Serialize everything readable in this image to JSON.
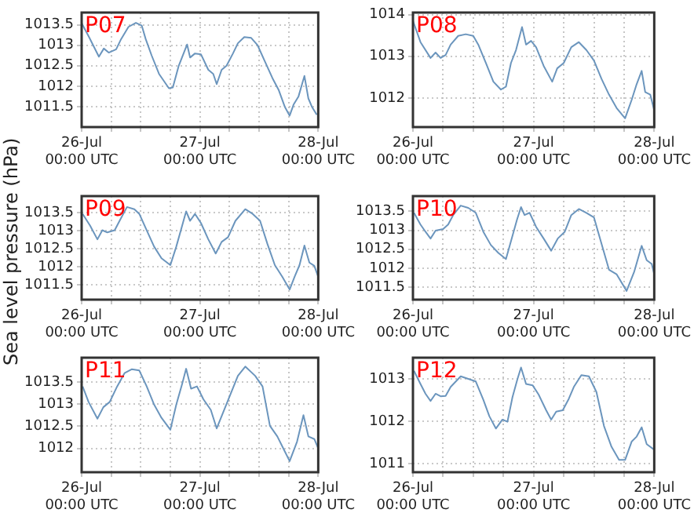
{
  "chart_data": [
    {
      "type": "line",
      "title": "P07",
      "xlim": [
        "--07-26T00:00",
        "--07-28T00:00"
      ],
      "xticks": [
        {
          "value": "--07-26T00:00",
          "label": "26-Jul\n00:00 UTC"
        },
        {
          "value": "--07-26T06:00",
          "label": null
        },
        {
          "value": "--07-26T12:00",
          "label": null
        },
        {
          "value": "--07-26T18:00",
          "label": null
        },
        {
          "value": "--07-27T00:00",
          "label": "27-Jul\n00:00 UTC"
        },
        {
          "value": "--07-27T06:00",
          "label": null
        },
        {
          "value": "--07-27T12:00",
          "label": null
        },
        {
          "value": "--07-27T18:00",
          "label": null
        },
        {
          "value": "--07-28T00:00",
          "label": "28-Jul\n00:00 UTC"
        }
      ],
      "ylim": [
        1011.0,
        1013.8
      ],
      "yticks": [
        1011.5,
        1012,
        1012.5,
        1013,
        1013.5
      ],
      "grid": true,
      "marker": "none",
      "line_style": "solid",
      "series": [
        {
          "color": "#6b95bd",
          "x": [
            "--07-26T00:00",
            "--07-26T01:30",
            "--07-26T03:30",
            "--07-26T04:30",
            "--07-26T05:30",
            "--07-26T07:00",
            "--07-26T08:00",
            "--07-26T09:30",
            "--07-26T11:00",
            "--07-26T12:12",
            "--07-26T13:00",
            "--07-26T14:12",
            "--07-26T15:42",
            "--07-26T17:42",
            "--07-26T18:30",
            "--07-26T19:42",
            "--07-26T21:24",
            "--07-26T22:00",
            "--07-26T23:00",
            "--07-27T00:12",
            "--07-27T01:42",
            "--07-27T02:42",
            "--07-27T03:24",
            "--07-27T04:24",
            "--07-27T05:24",
            "--07-27T06:42",
            "--07-27T07:42",
            "--07-27T09:00",
            "--07-27T10:24",
            "--07-27T11:42",
            "--07-27T13:12",
            "--07-27T14:42",
            "--07-27T16:00",
            "--07-27T17:12",
            "--07-27T18:12",
            "--07-27T19:00",
            "--07-27T20:00",
            "--07-27T21:12",
            "--07-27T22:00",
            "--07-27T22:42",
            "--07-27T23:42"
          ],
          "values": [
            1013.54,
            1013.2,
            1012.72,
            1012.92,
            1012.82,
            1012.9,
            1013.15,
            1013.45,
            1013.55,
            1013.48,
            1013.15,
            1012.75,
            1012.3,
            1011.95,
            1011.97,
            1012.5,
            1013.02,
            1012.7,
            1012.8,
            1012.78,
            1012.4,
            1012.3,
            1012.05,
            1012.4,
            1012.5,
            1012.8,
            1013.05,
            1013.2,
            1013.18,
            1013.0,
            1012.6,
            1012.2,
            1011.9,
            1011.5,
            1011.28,
            1011.55,
            1011.75,
            1012.25,
            1011.7,
            1011.5,
            1011.3
          ]
        }
      ]
    },
    {
      "type": "line",
      "title": "P08",
      "xlim": [
        "--07-26T00:00",
        "--07-28T00:00"
      ],
      "xticks": [
        {
          "value": "--07-26T00:00",
          "label": "26-Jul\n00:00 UTC"
        },
        {
          "value": "--07-26T06:00",
          "label": null
        },
        {
          "value": "--07-26T12:00",
          "label": null
        },
        {
          "value": "--07-26T18:00",
          "label": null
        },
        {
          "value": "--07-27T00:00",
          "label": "27-Jul\n00:00 UTC"
        },
        {
          "value": "--07-27T06:00",
          "label": null
        },
        {
          "value": "--07-27T12:00",
          "label": null
        },
        {
          "value": "--07-27T18:00",
          "label": null
        },
        {
          "value": "--07-28T00:00",
          "label": "28-Jul\n00:00 UTC"
        }
      ],
      "ylim": [
        1011.3,
        1014.05
      ],
      "yticks": [
        1012,
        1013,
        1014
      ],
      "grid": true,
      "marker": "none",
      "line_style": "solid",
      "series": [
        {
          "color": "#6b95bd",
          "x": [
            "--07-26T00:00",
            "--07-26T01:30",
            "--07-26T03:30",
            "--07-26T04:30",
            "--07-26T05:30",
            "--07-26T06:30",
            "--07-26T07:30",
            "--07-26T09:00",
            "--07-26T10:30",
            "--07-26T12:00",
            "--07-26T13:00",
            "--07-26T14:30",
            "--07-26T16:00",
            "--07-26T17:30",
            "--07-26T18:30",
            "--07-26T19:30",
            "--07-26T20:30",
            "--07-26T21:42",
            "--07-26T22:30",
            "--07-26T23:30",
            "--07-27T00:30",
            "--07-27T02:00",
            "--07-27T03:42",
            "--07-27T04:42",
            "--07-27T06:00",
            "--07-27T07:30",
            "--07-27T09:00",
            "--07-27T10:30",
            "--07-27T12:00",
            "--07-27T13:30",
            "--07-27T15:00",
            "--07-27T16:30",
            "--07-27T18:12",
            "--07-27T19:30",
            "--07-27T20:30",
            "--07-27T21:30",
            "--07-27T22:12",
            "--07-27T23:12",
            "--07-28T00:00"
          ],
          "values": [
            1013.85,
            1013.34,
            1012.96,
            1013.09,
            1012.96,
            1013.03,
            1013.28,
            1013.49,
            1013.53,
            1013.49,
            1013.28,
            1012.84,
            1012.39,
            1012.2,
            1012.27,
            1012.84,
            1013.15,
            1013.7,
            1013.28,
            1013.37,
            1013.22,
            1012.77,
            1012.39,
            1012.71,
            1012.84,
            1013.22,
            1013.34,
            1013.15,
            1012.9,
            1012.46,
            1012.08,
            1011.76,
            1011.51,
            1011.95,
            1012.33,
            1012.65,
            1012.14,
            1012.08,
            1011.7
          ]
        }
      ]
    },
    {
      "type": "line",
      "title": "P09",
      "ylabel": "Sea level pressure (hPa)",
      "xlim": [
        "--07-26T00:00",
        "--07-28T00:00"
      ],
      "xticks": [
        {
          "value": "--07-26T00:00",
          "label": "26-Jul\n00:00 UTC"
        },
        {
          "value": "--07-26T06:00",
          "label": null
        },
        {
          "value": "--07-26T12:00",
          "label": null
        },
        {
          "value": "--07-26T18:00",
          "label": null
        },
        {
          "value": "--07-27T00:00",
          "label": "27-Jul\n00:00 UTC"
        },
        {
          "value": "--07-27T06:00",
          "label": null
        },
        {
          "value": "--07-27T12:00",
          "label": null
        },
        {
          "value": "--07-27T18:00",
          "label": null
        },
        {
          "value": "--07-28T00:00",
          "label": "28-Jul\n00:00 UTC"
        }
      ],
      "ylim": [
        1011.1,
        1013.95
      ],
      "yticks": [
        1011.5,
        1012,
        1012.5,
        1013,
        1013.5
      ],
      "grid": true,
      "marker": "none",
      "line_style": "solid",
      "series": [
        {
          "color": "#6b95bd",
          "x": [
            "--07-26T00:12",
            "--07-26T01:42",
            "--07-26T03:12",
            "--07-26T04:12",
            "--07-26T05:12",
            "--07-26T06:42",
            "--07-26T07:42",
            "--07-26T09:12",
            "--07-26T10:42",
            "--07-26T11:42",
            "--07-26T13:12",
            "--07-26T14:42",
            "--07-26T16:12",
            "--07-26T18:00",
            "--07-26T19:12",
            "--07-26T20:24",
            "--07-26T21:12",
            "--07-26T22:00",
            "--07-26T23:00",
            "--07-27T00:12",
            "--07-27T01:42",
            "--07-27T03:12",
            "--07-27T04:24",
            "--07-27T05:42",
            "--07-27T07:12",
            "--07-27T09:12",
            "--07-27T10:42",
            "--07-27T12:12",
            "--07-27T13:42",
            "--07-27T15:12",
            "--07-27T16:42",
            "--07-27T18:12",
            "--07-27T19:12",
            "--07-27T20:12",
            "--07-27T21:12",
            "--07-27T22:12",
            "--07-27T23:12",
            "--07-28T00:00"
          ],
          "values": [
            1013.46,
            1013.14,
            1012.76,
            1013.01,
            1012.95,
            1013.01,
            1013.27,
            1013.65,
            1013.59,
            1013.46,
            1013.01,
            1012.56,
            1012.24,
            1012.05,
            1012.56,
            1013.14,
            1013.53,
            1013.27,
            1013.46,
            1013.21,
            1012.76,
            1012.37,
            1012.69,
            1012.82,
            1013.27,
            1013.59,
            1013.46,
            1013.27,
            1012.63,
            1012.05,
            1011.73,
            1011.38,
            1011.73,
            1012.05,
            1012.59,
            1012.12,
            1012.03,
            1011.73
          ]
        }
      ]
    },
    {
      "type": "line",
      "title": "P10",
      "xlim": [
        "--07-26T00:00",
        "--07-28T00:00"
      ],
      "xticks": [
        {
          "value": "--07-26T00:00",
          "label": "26-Jul\n00:00 UTC"
        },
        {
          "value": "--07-26T06:00",
          "label": null
        },
        {
          "value": "--07-26T12:00",
          "label": null
        },
        {
          "value": "--07-26T18:00",
          "label": null
        },
        {
          "value": "--07-27T00:00",
          "label": "27-Jul\n00:00 UTC"
        },
        {
          "value": "--07-27T06:00",
          "label": null
        },
        {
          "value": "--07-27T12:00",
          "label": null
        },
        {
          "value": "--07-27T18:00",
          "label": null
        },
        {
          "value": "--07-28T00:00",
          "label": "28-Jul\n00:00 UTC"
        }
      ],
      "ylim": [
        1011.17,
        1013.9
      ],
      "yticks": [
        1011.5,
        1012,
        1012.5,
        1013,
        1013.5
      ],
      "grid": true,
      "marker": "none",
      "line_style": "solid",
      "series": [
        {
          "color": "#6b95bd",
          "x": [
            "--07-26T00:12",
            "--07-26T01:30",
            "--07-26T02:30",
            "--07-26T03:30",
            "--07-26T04:30",
            "--07-26T06:00",
            "--07-26T07:00",
            "--07-26T08:00",
            "--07-26T09:30",
            "--07-26T11:00",
            "--07-26T12:30",
            "--07-26T14:00",
            "--07-26T15:30",
            "--07-26T17:00",
            "--07-26T18:30",
            "--07-26T19:30",
            "--07-26T20:42",
            "--07-26T21:30",
            "--07-26T22:12",
            "--07-26T23:12",
            "--07-27T00:30",
            "--07-27T02:00",
            "--07-27T03:30",
            "--07-27T04:48",
            "--07-27T06:12",
            "--07-27T07:30",
            "--07-27T09:00",
            "--07-27T10:30",
            "--07-27T12:00",
            "--07-27T13:30",
            "--07-27T15:00",
            "--07-27T16:30",
            "--07-27T18:30",
            "--07-27T20:00",
            "--07-27T21:30",
            "--07-27T22:30",
            "--07-27T23:30",
            "--07-28T00:00"
          ],
          "values": [
            1013.46,
            1013.15,
            1012.96,
            1012.78,
            1012.99,
            1013.03,
            1013.15,
            1013.4,
            1013.65,
            1013.59,
            1013.46,
            1012.96,
            1012.61,
            1012.4,
            1012.24,
            1012.71,
            1013.28,
            1013.61,
            1013.4,
            1013.46,
            1013.09,
            1012.78,
            1012.46,
            1012.78,
            1012.96,
            1013.4,
            1013.56,
            1013.46,
            1013.34,
            1012.65,
            1011.96,
            1011.84,
            1011.4,
            1011.9,
            1012.59,
            1012.21,
            1012.11,
            1011.84
          ]
        }
      ]
    },
    {
      "type": "line",
      "title": "P11",
      "xlim": [
        "--07-26T00:00",
        "--07-28T00:00"
      ],
      "xticks": [
        {
          "value": "--07-26T00:00",
          "label": "26-Jul\n00:00 UTC"
        },
        {
          "value": "--07-26T06:00",
          "label": null
        },
        {
          "value": "--07-26T12:00",
          "label": null
        },
        {
          "value": "--07-26T18:00",
          "label": null
        },
        {
          "value": "--07-27T00:00",
          "label": "27-Jul\n00:00 UTC"
        },
        {
          "value": "--07-27T06:00",
          "label": null
        },
        {
          "value": "--07-27T12:00",
          "label": null
        },
        {
          "value": "--07-27T18:00",
          "label": null
        },
        {
          "value": "--07-28T00:00",
          "label": "28-Jul\n00:00 UTC"
        }
      ],
      "ylim": [
        1011.46,
        1014.05
      ],
      "yticks": [
        1012,
        1012.5,
        1013,
        1013.5
      ],
      "grid": true,
      "marker": "none",
      "line_style": "solid",
      "series": [
        {
          "color": "#6b95bd",
          "x": [
            "--07-26T00:12",
            "--07-26T01:24",
            "--07-26T03:12",
            "--07-26T04:24",
            "--07-26T05:42",
            "--07-26T07:12",
            "--07-26T08:42",
            "--07-26T10:12",
            "--07-26T11:42",
            "--07-26T13:12",
            "--07-26T14:42",
            "--07-26T16:12",
            "--07-26T18:00",
            "--07-26T19:12",
            "--07-26T20:24",
            "--07-26T21:12",
            "--07-26T22:12",
            "--07-26T23:24",
            "--07-27T00:42",
            "--07-27T02:12",
            "--07-27T03:24",
            "--07-27T04:42",
            "--07-27T06:00",
            "--07-27T07:42",
            "--07-27T09:12",
            "--07-27T11:12",
            "--07-27T12:42",
            "--07-27T14:12",
            "--07-27T15:42",
            "--07-27T17:00",
            "--07-27T18:12",
            "--07-27T19:42",
            "--07-27T21:00",
            "--07-27T22:00",
            "--07-27T23:12",
            "--07-28T00:00"
          ],
          "values": [
            1013.4,
            1013.05,
            1012.67,
            1012.93,
            1013.05,
            1013.4,
            1013.7,
            1013.79,
            1013.76,
            1013.4,
            1012.99,
            1012.69,
            1012.42,
            1012.99,
            1013.46,
            1013.8,
            1013.35,
            1013.4,
            1013.11,
            1012.87,
            1012.45,
            1012.81,
            1013.17,
            1013.64,
            1013.85,
            1013.64,
            1013.4,
            1012.51,
            1012.27,
            1011.98,
            1011.71,
            1012.15,
            1012.75,
            1012.27,
            1012.21,
            1012.0
          ]
        }
      ]
    },
    {
      "type": "line",
      "title": "P12",
      "xlim": [
        "--07-26T00:00",
        "--07-28T00:00"
      ],
      "xticks": [
        {
          "value": "--07-26T00:00",
          "label": "26-Jul\n00:00 UTC"
        },
        {
          "value": "--07-26T06:00",
          "label": null
        },
        {
          "value": "--07-26T12:00",
          "label": null
        },
        {
          "value": "--07-26T18:00",
          "label": null
        },
        {
          "value": "--07-27T00:00",
          "label": "27-Jul\n00:00 UTC"
        },
        {
          "value": "--07-27T06:00",
          "label": null
        },
        {
          "value": "--07-27T12:00",
          "label": null
        },
        {
          "value": "--07-27T18:00",
          "label": null
        },
        {
          "value": "--07-28T00:00",
          "label": "28-Jul\n00:00 UTC"
        }
      ],
      "ylim": [
        1010.8,
        1013.5
      ],
      "yticks": [
        1011,
        1012,
        1013
      ],
      "grid": true,
      "marker": "none",
      "line_style": "solid",
      "series": [
        {
          "color": "#6b95bd",
          "x": [
            "--07-26T00:12",
            "--07-26T01:30",
            "--07-26T02:30",
            "--07-26T03:30",
            "--07-26T04:30",
            "--07-26T05:30",
            "--07-26T06:30",
            "--07-26T07:30",
            "--07-26T09:30",
            "--07-26T11:00",
            "--07-26T12:30",
            "--07-26T14:00",
            "--07-26T15:12",
            "--07-26T16:30",
            "--07-26T17:48",
            "--07-26T18:48",
            "--07-26T19:48",
            "--07-26T20:48",
            "--07-26T21:30",
            "--07-26T22:30",
            "--07-26T23:48",
            "--07-27T01:00",
            "--07-27T02:30",
            "--07-27T03:30",
            "--07-27T04:30",
            "--07-27T05:48",
            "--07-27T07:00",
            "--07-27T08:00",
            "--07-27T09:30",
            "--07-27T11:00",
            "--07-27T12:30",
            "--07-27T14:00",
            "--07-27T15:30",
            "--07-27T17:00",
            "--07-27T18:12",
            "--07-27T19:30",
            "--07-27T20:30",
            "--07-27T21:30",
            "--07-27T22:30",
            "--07-28T00:00"
          ],
          "values": [
            1013.19,
            1012.88,
            1012.65,
            1012.48,
            1012.65,
            1012.59,
            1012.6,
            1012.81,
            1013.06,
            1013.0,
            1012.94,
            1012.51,
            1012.12,
            1011.83,
            1012.04,
            1011.99,
            1012.57,
            1013.0,
            1013.27,
            1012.88,
            1012.85,
            1012.63,
            1012.26,
            1012.04,
            1012.23,
            1012.26,
            1012.53,
            1012.81,
            1013.09,
            1013.06,
            1012.69,
            1011.89,
            1011.4,
            1011.09,
            1011.09,
            1011.52,
            1011.64,
            1011.86,
            1011.46,
            1011.33
          ]
        }
      ]
    }
  ]
}
